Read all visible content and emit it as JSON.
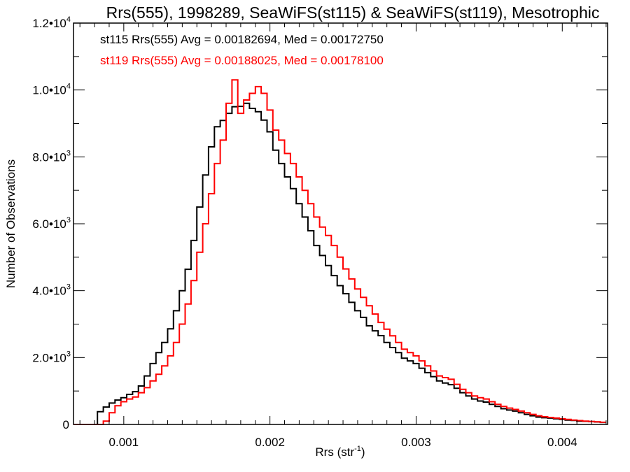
{
  "chart_data": {
    "type": "histogram",
    "title": "Rrs(555), 1998289, SeaWiFS(st115) & SeaWiFS(st119), Mesotrophic",
    "xlabel": "Rrs (str",
    "xlabel_sup": "-1",
    "xlabel_close": ")",
    "ylabel": "Number of Observations",
    "xlim": [
      0.000656,
      0.00431
    ],
    "ylim": [
      0,
      12000
    ],
    "grid": false,
    "bin_start": 0.00066,
    "bin_width": 4e-05,
    "x_ticks": [
      {
        "value": 0.001,
        "label": "0.001"
      },
      {
        "value": 0.002,
        "label": "0.002"
      },
      {
        "value": 0.003,
        "label": "0.003"
      },
      {
        "value": 0.004,
        "label": "0.004"
      }
    ],
    "x_minor_step": 0.0001,
    "y_ticks": [
      {
        "value": 0,
        "label": "0",
        "sup": ""
      },
      {
        "value": 2000,
        "label": "2.0•10",
        "sup": "3"
      },
      {
        "value": 4000,
        "label": "4.0•10",
        "sup": "3"
      },
      {
        "value": 6000,
        "label": "6.0•10",
        "sup": "3"
      },
      {
        "value": 8000,
        "label": "8.0•10",
        "sup": "3"
      },
      {
        "value": 10000,
        "label": "1.0•10",
        "sup": "4"
      },
      {
        "value": 12000,
        "label": "1.2•10",
        "sup": "4"
      }
    ],
    "y_minor_step": 1000,
    "annotations": [
      {
        "text": "st115 Rrs(555) Avg = 0.00182694, Med = 0.00172750",
        "color": "#000000"
      },
      {
        "text": "st119 Rrs(555) Avg = 0.00188025, Med = 0.00178100",
        "color": "#ff0000"
      }
    ],
    "series": [
      {
        "name": "st115",
        "color": "#000000",
        "avg": 0.00182694,
        "median": 0.0017275,
        "values": [
          0,
          0,
          0,
          0,
          380,
          520,
          640,
          730,
          800,
          900,
          980,
          1150,
          1450,
          1820,
          2150,
          2450,
          2860,
          3400,
          4000,
          4640,
          5500,
          6500,
          7460,
          8300,
          8900,
          9090,
          9300,
          9500,
          9510,
          9600,
          9450,
          9350,
          9100,
          8750,
          8200,
          7800,
          7400,
          7050,
          6600,
          6200,
          5790,
          5350,
          5050,
          4750,
          4450,
          4150,
          3910,
          3650,
          3400,
          3200,
          2950,
          2800,
          2655,
          2450,
          2300,
          2150,
          1980,
          1900,
          1820,
          1680,
          1550,
          1430,
          1300,
          1240,
          1190,
          1080,
          950,
          850,
          760,
          700,
          670,
          600,
          540,
          470,
          430,
          400,
          350,
          300,
          260,
          220,
          200,
          190,
          170,
          150,
          130,
          120,
          100,
          95,
          85,
          75,
          60
        ]
      },
      {
        "name": "st119",
        "color": "#ff0000",
        "avg": 0.00188025,
        "median": 0.001781,
        "values": [
          0,
          0,
          0,
          0,
          0,
          100,
          350,
          560,
          680,
          760,
          820,
          950,
          1100,
          1300,
          1500,
          1750,
          2050,
          2450,
          3000,
          3600,
          4300,
          5150,
          6000,
          6900,
          7800,
          8500,
          9600,
          10300,
          9300,
          9700,
          9900,
          10100,
          9900,
          9400,
          8800,
          8500,
          8100,
          7800,
          7400,
          7000,
          6600,
          6200,
          5900,
          5650,
          5350,
          5000,
          4650,
          4350,
          4050,
          3800,
          3550,
          3300,
          3050,
          2850,
          2650,
          2450,
          2250,
          2150,
          2050,
          1900,
          1750,
          1600,
          1450,
          1400,
          1350,
          1200,
          1050,
          950,
          850,
          800,
          760,
          680,
          600,
          540,
          490,
          450,
          400,
          350,
          300,
          260,
          230,
          210,
          190,
          170,
          150,
          130,
          115,
          100,
          90,
          80,
          65
        ]
      }
    ]
  }
}
